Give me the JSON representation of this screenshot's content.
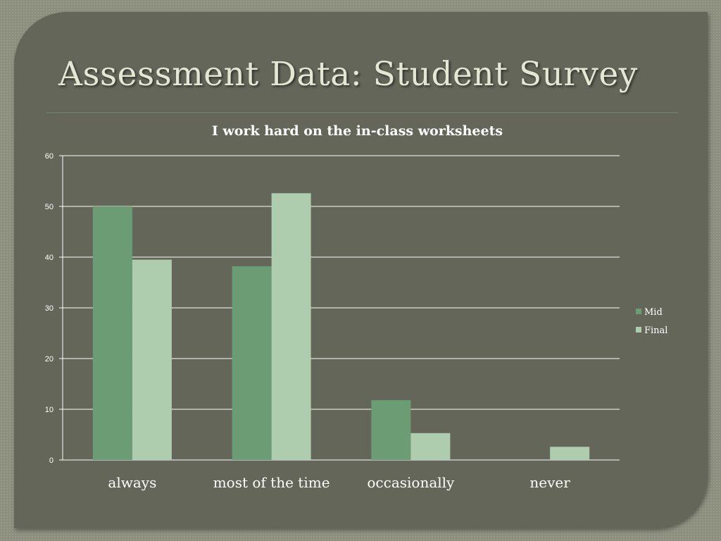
{
  "slide": {
    "title": "Assessment Data: Student Survey"
  },
  "chart_data": {
    "type": "bar",
    "title": "I work hard on the in-class worksheets",
    "categories": [
      "always",
      "most of the time",
      "occasionally",
      "never"
    ],
    "series": [
      {
        "name": "Mid",
        "values": [
          50,
          38.2,
          11.8,
          0
        ],
        "color": "#6c9c73"
      },
      {
        "name": "Final",
        "values": [
          39.5,
          52.6,
          5.3,
          2.6
        ],
        "color": "#adcdae"
      }
    ],
    "ylim": [
      0,
      60
    ],
    "yticks": [
      0,
      10,
      20,
      30,
      40,
      50,
      60
    ],
    "grid": true,
    "legend": "right",
    "xlabel": "",
    "ylabel": ""
  }
}
